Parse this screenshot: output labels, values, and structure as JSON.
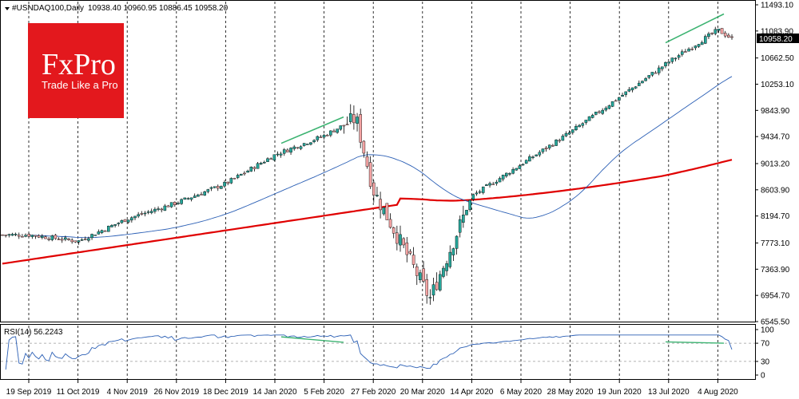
{
  "header": {
    "symbol": "#USNDAQ100,Daily",
    "ohlc": "10938.40 10960.95 10886.45 10958.20"
  },
  "logo": {
    "brand": "FxPro",
    "tagline": "Trade Like a Pro",
    "color": "#e3181d"
  },
  "price_tag": "10958.20",
  "rsi_label": "RSI(14) 56.2243",
  "chart_data": [
    {
      "type": "candlestick",
      "y_ticks": [
        "11493.10",
        "11083.90",
        "10662.50",
        "10253.10",
        "9843.90",
        "9434.70",
        "9013.20",
        "8603.90",
        "8194.70",
        "7773.10",
        "7363.90",
        "6954.70",
        "6545.50"
      ],
      "x_labels": [
        "19 Sep 2019",
        "11 Oct 2019",
        "4 Nov 2019",
        "26 Nov 2019",
        "18 Dec 2019",
        "14 Jan 2020",
        "5 Feb 2020",
        "27 Feb 2020",
        "20 Mar 2020",
        "14 Apr 2020",
        "6 May 2020",
        "28 May 2020",
        "19 Jun 2020",
        "13 Jul 2020",
        "4 Aug 2020"
      ],
      "ylim": [
        6545.5,
        11493.1
      ],
      "last_price": 10958.2,
      "key_closes": [
        {
          "date": "19 Sep 2019",
          "close": 7900
        },
        {
          "date": "11 Oct 2019",
          "close": 7800
        },
        {
          "date": "4 Nov 2019",
          "close": 8150
        },
        {
          "date": "26 Nov 2019",
          "close": 8400
        },
        {
          "date": "18 Dec 2019",
          "close": 8700
        },
        {
          "date": "14 Jan 2020",
          "close": 9150
        },
        {
          "date": "5 Feb 2020",
          "close": 9450
        },
        {
          "date": "19 Feb 2020",
          "close": 9720
        },
        {
          "date": "27 Feb 2020",
          "close": 8600
        },
        {
          "date": "23 Mar 2020",
          "close": 6900
        },
        {
          "date": "14 Apr 2020",
          "close": 8500
        },
        {
          "date": "6 May 2020",
          "close": 9000
        },
        {
          "date": "28 May 2020",
          "close": 9500
        },
        {
          "date": "19 Jun 2020",
          "close": 10050
        },
        {
          "date": "13 Jul 2020",
          "close": 10600
        },
        {
          "date": "4 Aug 2020",
          "close": 11100
        },
        {
          "date": "10 Aug 2020",
          "close": 10958.2
        }
      ],
      "colors": {
        "up": "#26a69a",
        "down": "#f4a3a3",
        "ma_fast": "#2b5fb5",
        "ma_slow": "#e00000",
        "trend": "#3cb371",
        "grid": "#000000"
      }
    },
    {
      "type": "line",
      "y_ticks": [
        "100",
        "70",
        "30",
        "0"
      ],
      "ylim": [
        0,
        100
      ],
      "levels": [
        70,
        30
      ],
      "value": 56.2243
    }
  ]
}
